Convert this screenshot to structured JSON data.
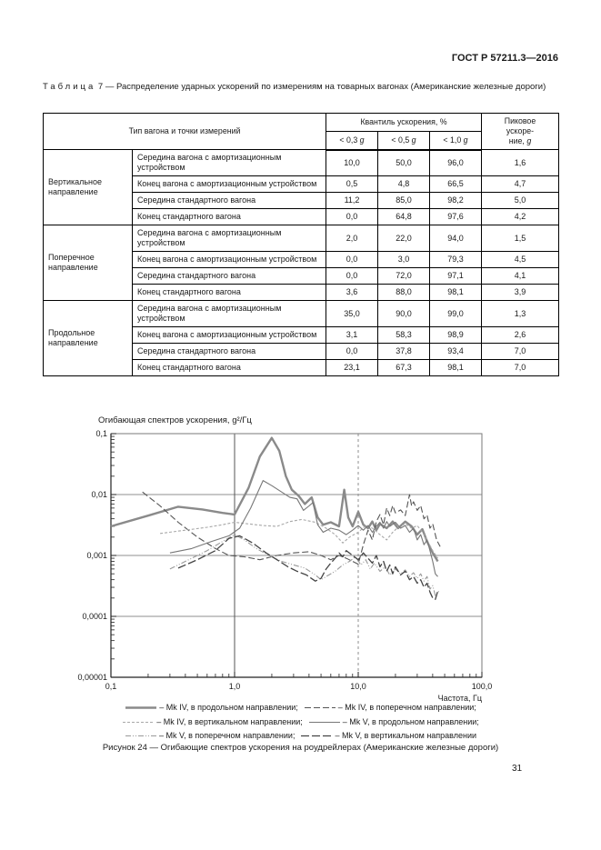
{
  "page": {
    "header": "ГОСТ Р 57211.3—2016",
    "number": "31"
  },
  "table": {
    "caption_word": "Таблица",
    "caption_num": "7",
    "caption_text": "— Распределение ударных ускорений по измерениям на товарных вагонах (Американские железные дороги)",
    "type_header": "Тип вагона и точки измерений",
    "quantile_header": "Квантиль ускорения, %",
    "quantile_cols": [
      "< 0,3",
      "< 0,5",
      "< 1,0"
    ],
    "g_symbol": "g",
    "peak_lines": [
      "Пиковое",
      "ускоре-",
      "ние,"
    ],
    "groups": [
      {
        "name": "Вертикальное направление",
        "rows": [
          {
            "label": "Середина вагона с амортизационным устройством",
            "values": [
              "10,0",
              "50,0",
              "96,0",
              "1,6"
            ]
          },
          {
            "label": "Конец вагона с амортизационным устройством",
            "values": [
              "0,5",
              "4,8",
              "66,5",
              "4,7"
            ]
          },
          {
            "label": "Середина стандартного вагона",
            "values": [
              "11,2",
              "85,0",
              "98,2",
              "5,0"
            ]
          },
          {
            "label": "Конец стандартного вагона",
            "values": [
              "0,0",
              "64,8",
              "97,6",
              "4,2"
            ]
          }
        ]
      },
      {
        "name": "Поперечное направление",
        "rows": [
          {
            "label": "Середина вагона с амортизационным устройством",
            "values": [
              "2,0",
              "22,0",
              "94,0",
              "1,5"
            ]
          },
          {
            "label": "Конец вагона с амортизационным устройством",
            "values": [
              "0,0",
              "3,0",
              "79,3",
              "4,5"
            ]
          },
          {
            "label": "Середина стандартного вагона",
            "values": [
              "0,0",
              "72,0",
              "97,1",
              "4,1"
            ]
          },
          {
            "label": "Конец стандартного вагона",
            "values": [
              "3,6",
              "88,0",
              "98,1",
              "3,9"
            ]
          }
        ]
      },
      {
        "name": "Продольное направление",
        "rows": [
          {
            "label": "Середина вагона с амортизационным устройством",
            "values": [
              "35,0",
              "90,0",
              "99,0",
              "1,3"
            ]
          },
          {
            "label": "Конец вагона с амортизационным устройством",
            "values": [
              "3,1",
              "58,3",
              "98,9",
              "2,6"
            ]
          },
          {
            "label": "Середина стандартного вагона",
            "values": [
              "0,0",
              "37,8",
              "93,4",
              "7,0"
            ]
          },
          {
            "label": "Конец стандартного вагона",
            "values": [
              "23,1",
              "67,3",
              "98,1",
              "7,0"
            ]
          }
        ]
      }
    ]
  },
  "legend": {
    "separator": "–"
  },
  "figure": {
    "caption": "Рисунок 24 — Огибающие спектров ускорения на роудрейлерах (Американские железные дороги)"
  },
  "chart_data": {
    "type": "line",
    "title": "",
    "ylabel": "Огибающая спектров ускорения, g²/Гц",
    "xlabel": "Частота, Гц",
    "x_scale": "log",
    "y_scale": "log",
    "xlim": [
      0.1,
      100
    ],
    "ylim": [
      1e-05,
      0.1
    ],
    "x_ticks": [
      "0,1",
      "1,0",
      "10,0",
      "100,0"
    ],
    "x_tick_values": [
      0.1,
      1,
      10,
      100
    ],
    "y_ticks": [
      "0,1",
      "0,01",
      "0,001",
      "0,0001",
      "0,00001"
    ],
    "y_tick_values": [
      0.1,
      0.01,
      0.001,
      0.0001,
      1e-05
    ],
    "grid": true,
    "legend_position": "below",
    "series": [
      {
        "id": "mkiv-longitudinal",
        "legend_label": "Mk IV, в продольном направлении;",
        "color": "#8a8a8a",
        "width": 2.4,
        "dash": "",
        "points": [
          [
            0.1,
            0.003
          ],
          [
            0.2,
            0.0045
          ],
          [
            0.35,
            0.0063
          ],
          [
            0.55,
            0.0057
          ],
          [
            0.8,
            0.005
          ],
          [
            1.0,
            0.0047
          ],
          [
            1.3,
            0.013
          ],
          [
            1.6,
            0.042
          ],
          [
            2.0,
            0.085
          ],
          [
            2.3,
            0.052
          ],
          [
            2.6,
            0.02
          ],
          [
            2.9,
            0.012
          ],
          [
            3.3,
            0.0095
          ],
          [
            3.7,
            0.007
          ],
          [
            4.2,
            0.009
          ],
          [
            4.7,
            0.0042
          ],
          [
            5.2,
            0.0032
          ],
          [
            6.0,
            0.0035
          ],
          [
            7.0,
            0.003
          ],
          [
            7.7,
            0.012
          ],
          [
            8.3,
            0.0042
          ],
          [
            9.0,
            0.003
          ],
          [
            10.0,
            0.0052
          ],
          [
            11,
            0.0032
          ],
          [
            12,
            0.0028
          ],
          [
            13,
            0.0036
          ],
          [
            14,
            0.0026
          ],
          [
            15,
            0.0033
          ],
          [
            17,
            0.0028
          ],
          [
            19,
            0.0036
          ],
          [
            21,
            0.0028
          ],
          [
            24,
            0.0036
          ],
          [
            27,
            0.003
          ],
          [
            30,
            0.0022
          ],
          [
            33,
            0.0027
          ],
          [
            36,
            0.0017
          ],
          [
            40,
            0.0011
          ],
          [
            44,
            0.0008
          ]
        ]
      },
      {
        "id": "mkiv-lateral",
        "legend_label": "Mk IV, в поперечном направлении;",
        "color": "#555555",
        "width": 1.1,
        "dash": "7 3",
        "points": [
          [
            0.18,
            0.011
          ],
          [
            0.25,
            0.0065
          ],
          [
            0.35,
            0.0035
          ],
          [
            0.5,
            0.002
          ],
          [
            0.7,
            0.0013
          ],
          [
            0.9,
            0.001
          ],
          [
            1.2,
            0.00095
          ],
          [
            1.6,
            0.00085
          ],
          [
            2.2,
            0.001
          ],
          [
            3.0,
            0.0011
          ],
          [
            4.0,
            0.00115
          ],
          [
            5.0,
            0.001
          ],
          [
            6.0,
            0.00085
          ],
          [
            7.0,
            0.001
          ],
          [
            8.0,
            0.0009
          ],
          [
            9.0,
            0.0008
          ],
          [
            10,
            0.00072
          ],
          [
            11,
            0.0015
          ],
          [
            12,
            0.0026
          ],
          [
            13,
            0.0018
          ],
          [
            14,
            0.0036
          ],
          [
            15,
            0.0047
          ],
          [
            16,
            0.0032
          ],
          [
            17,
            0.006
          ],
          [
            18,
            0.0045
          ],
          [
            19,
            0.0066
          ],
          [
            20,
            0.005
          ],
          [
            22,
            0.0056
          ],
          [
            24,
            0.0045
          ],
          [
            26,
            0.01
          ],
          [
            27,
            0.0065
          ],
          [
            28,
            0.0076
          ],
          [
            30,
            0.0055
          ],
          [
            32,
            0.0066
          ],
          [
            34,
            0.004
          ],
          [
            36,
            0.0046
          ],
          [
            38,
            0.0028
          ],
          [
            40,
            0.0033
          ],
          [
            43,
            0.0018
          ],
          [
            46,
            0.0014
          ]
        ]
      },
      {
        "id": "mkiv-vertical",
        "legend_label": "Mk IV, в вертикальном направлении;",
        "color": "#a8a8a8",
        "width": 1.1,
        "dash": "3 2",
        "points": [
          [
            0.25,
            0.0023
          ],
          [
            0.4,
            0.0026
          ],
          [
            0.6,
            0.0029
          ],
          [
            0.8,
            0.0032
          ],
          [
            1.0,
            0.0035
          ],
          [
            1.3,
            0.0033
          ],
          [
            1.7,
            0.0031
          ],
          [
            2.2,
            0.003
          ],
          [
            2.8,
            0.0036
          ],
          [
            3.5,
            0.0039
          ],
          [
            4.5,
            0.0035
          ],
          [
            5.5,
            0.0028
          ],
          [
            6.5,
            0.0022
          ],
          [
            7.5,
            0.0016
          ],
          [
            8.5,
            0.002
          ],
          [
            10,
            0.0024
          ],
          [
            11.5,
            0.0031
          ],
          [
            13,
            0.0028
          ],
          [
            15,
            0.0022
          ],
          [
            17,
            0.0018
          ],
          [
            19,
            0.0024
          ],
          [
            21,
            0.0029
          ],
          [
            24,
            0.0033
          ],
          [
            27,
            0.0028
          ],
          [
            30,
            0.0031
          ],
          [
            33,
            0.0024
          ],
          [
            36,
            0.0018
          ],
          [
            40,
            0.0012
          ],
          [
            44,
            0.0009
          ]
        ]
      },
      {
        "id": "mkv-longitudinal",
        "legend_label": "Mk V, в продольном направлении;",
        "color": "#777777",
        "width": 1.1,
        "dash": "",
        "points": [
          [
            0.3,
            0.0011
          ],
          [
            0.45,
            0.0013
          ],
          [
            0.65,
            0.0017
          ],
          [
            0.9,
            0.0021
          ],
          [
            1.1,
            0.0028
          ],
          [
            1.35,
            0.006
          ],
          [
            1.7,
            0.017
          ],
          [
            2.0,
            0.014
          ],
          [
            2.4,
            0.011
          ],
          [
            2.8,
            0.009
          ],
          [
            3.2,
            0.0085
          ],
          [
            3.6,
            0.0055
          ],
          [
            4.0,
            0.0065
          ],
          [
            4.3,
            0.0074
          ],
          [
            4.7,
            0.0032
          ],
          [
            5.2,
            0.0024
          ],
          [
            6,
            0.0028
          ],
          [
            7,
            0.0026
          ],
          [
            8,
            0.0022
          ],
          [
            9,
            0.0026
          ],
          [
            10,
            0.0031
          ],
          [
            11,
            0.0026
          ],
          [
            12,
            0.0031
          ],
          [
            13,
            0.0024
          ],
          [
            14,
            0.003
          ],
          [
            15,
            0.0035
          ],
          [
            16,
            0.0028
          ],
          [
            17,
            0.0036
          ],
          [
            18,
            0.003
          ],
          [
            20,
            0.0035
          ],
          [
            22,
            0.0028
          ],
          [
            24,
            0.0031
          ],
          [
            26,
            0.0024
          ],
          [
            28,
            0.0028
          ],
          [
            30,
            0.0018
          ],
          [
            32,
            0.0022
          ],
          [
            34,
            0.0015
          ],
          [
            36,
            0.0018
          ],
          [
            38,
            0.0012
          ],
          [
            40,
            0.0008
          ],
          [
            42,
            0.0005
          ],
          [
            44,
            0.00045
          ]
        ]
      },
      {
        "id": "mkv-lateral",
        "legend_label": "Mk V, в поперечном направлении;",
        "color": "#999999",
        "width": 1.1,
        "dash": "6 2 1 2 1 2",
        "points": [
          [
            0.3,
            0.0006
          ],
          [
            0.45,
            0.0009
          ],
          [
            0.6,
            0.0012
          ],
          [
            0.8,
            0.0017
          ],
          [
            1.0,
            0.0022
          ],
          [
            1.2,
            0.0018
          ],
          [
            1.5,
            0.0013
          ],
          [
            1.9,
            0.001
          ],
          [
            2.4,
            0.0008
          ],
          [
            3.0,
            0.0007
          ],
          [
            3.7,
            0.00062
          ],
          [
            4.5,
            0.00048
          ],
          [
            5.0,
            0.0004
          ],
          [
            5.5,
            0.00045
          ],
          [
            6.5,
            0.00055
          ],
          [
            7.5,
            0.0007
          ],
          [
            8.5,
            0.0008
          ],
          [
            9.5,
            0.00095
          ],
          [
            10.5,
            0.0007
          ],
          [
            11.5,
            0.00085
          ],
          [
            12.5,
            0.0006
          ],
          [
            13.5,
            0.00075
          ],
          [
            15,
            0.00055
          ],
          [
            16.5,
            0.00065
          ],
          [
            18,
            0.00048
          ],
          [
            20,
            0.0006
          ],
          [
            22,
            0.0005
          ],
          [
            24,
            0.00058
          ],
          [
            26,
            0.00045
          ],
          [
            28,
            0.00052
          ],
          [
            30,
            0.00042
          ],
          [
            32,
            0.0005
          ],
          [
            34,
            0.00038
          ],
          [
            36,
            0.00045
          ],
          [
            38,
            0.00028
          ],
          [
            40,
            0.00032
          ],
          [
            42,
            0.00022
          ],
          [
            45,
            0.00026
          ]
        ]
      },
      {
        "id": "mkv-vertical",
        "legend_label": "Mk V, в вертикальном направлении",
        "color": "#444444",
        "width": 1.3,
        "dash": "9 3",
        "points": [
          [
            0.35,
            0.00062
          ],
          [
            0.5,
            0.00085
          ],
          [
            0.7,
            0.0012
          ],
          [
            0.9,
            0.0019
          ],
          [
            1.1,
            0.0021
          ],
          [
            1.4,
            0.0016
          ],
          [
            1.8,
            0.0011
          ],
          [
            2.2,
            0.00085
          ],
          [
            2.7,
            0.00065
          ],
          [
            3.2,
            0.00055
          ],
          [
            3.8,
            0.00048
          ],
          [
            4.5,
            0.00038
          ],
          [
            5.0,
            0.00042
          ],
          [
            5.5,
            0.0006
          ],
          [
            6.0,
            0.00075
          ],
          [
            6.5,
            0.0009
          ],
          [
            7.0,
            0.0011
          ],
          [
            7.5,
            0.00095
          ],
          [
            8.0,
            0.0012
          ],
          [
            9.0,
            0.001
          ],
          [
            10,
            0.00085
          ],
          [
            11,
            0.0011
          ],
          [
            12,
            0.0009
          ],
          [
            13,
            0.00075
          ],
          [
            14,
            0.001
          ],
          [
            15,
            0.00065
          ],
          [
            16,
            0.0008
          ],
          [
            17,
            0.00055
          ],
          [
            18,
            0.0007
          ],
          [
            19,
            0.0005
          ],
          [
            20,
            0.00065
          ],
          [
            22,
            0.00048
          ],
          [
            24,
            0.00055
          ],
          [
            26,
            0.0004
          ],
          [
            28,
            0.00045
          ],
          [
            30,
            0.00035
          ],
          [
            32,
            0.0004
          ],
          [
            34,
            0.0003
          ],
          [
            36,
            0.00035
          ],
          [
            38,
            0.00025
          ],
          [
            40,
            0.0002
          ],
          [
            42,
            0.00019
          ],
          [
            44,
            0.00026
          ]
        ]
      }
    ]
  }
}
